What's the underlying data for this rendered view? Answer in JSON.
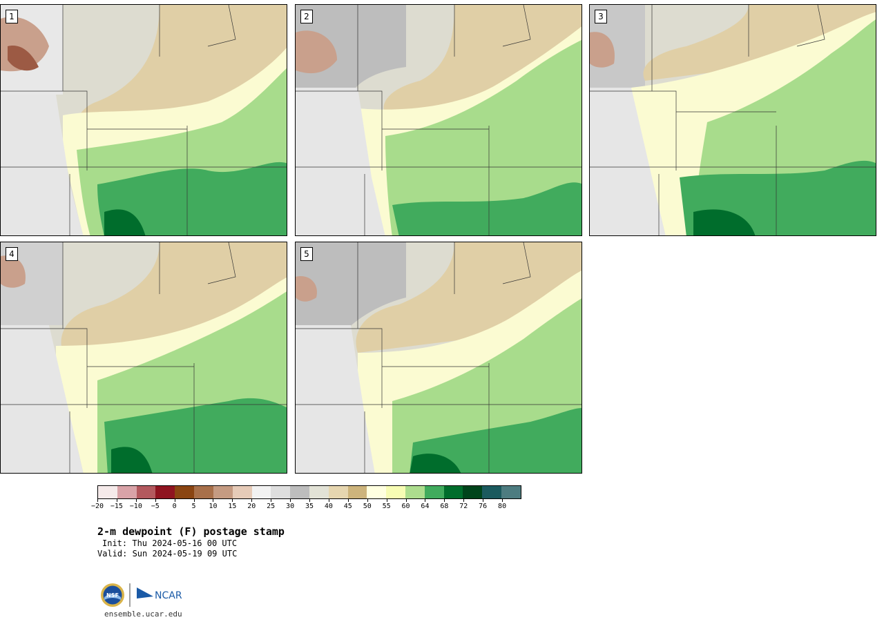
{
  "panels": [
    {
      "label": "1"
    },
    {
      "label": "2"
    },
    {
      "label": "3"
    },
    {
      "label": "4"
    },
    {
      "label": "5"
    }
  ],
  "colorbar": {
    "colors": [
      "#f5eaea",
      "#d9a3a8",
      "#b3595e",
      "#8f1420",
      "#8a4512",
      "#a8704a",
      "#c59b82",
      "#e6cbb8",
      "#f2f2f2",
      "#dedede",
      "#bdbdbd",
      "#e2e2d6",
      "#e6d6b0",
      "#cdb47c",
      "#ffffe0",
      "#f7fcb4",
      "#addd8e",
      "#41ab5d",
      "#006d2c",
      "#00441b",
      "#1b5a5e",
      "#4d7c80"
    ],
    "tick_labels": [
      "−20",
      "−15",
      "−10",
      "−5",
      "0",
      "5",
      "10",
      "15",
      "20",
      "25",
      "30",
      "35",
      "40",
      "45",
      "50",
      "55",
      "60",
      "64",
      "68",
      "72",
      "76",
      "80"
    ]
  },
  "title": "2-m dewpoint (F) postage stamp",
  "init": "Init: Thu 2024-05-16 00 UTC",
  "valid": "Valid: Sun 2024-05-19 09 UTC",
  "logo": {
    "nsf": "NSF",
    "ncar": "NCAR"
  },
  "website": "ensemble.ucar.edu"
}
